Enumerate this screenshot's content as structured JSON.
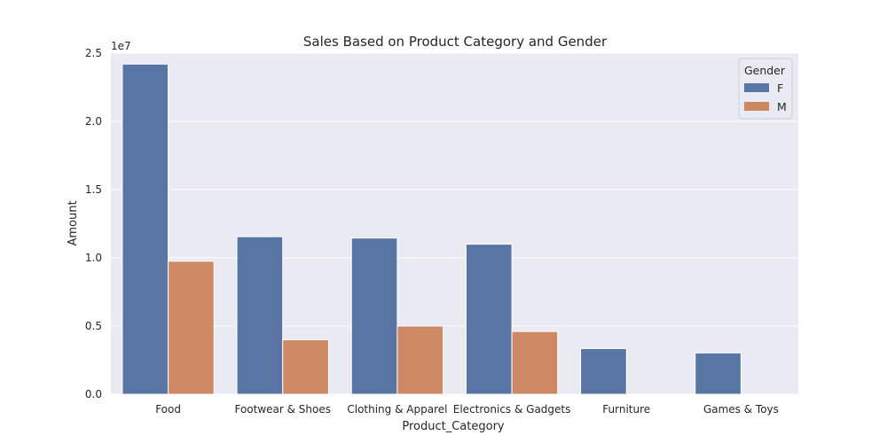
{
  "chart_data": {
    "type": "bar",
    "title": "Sales Based on Product Category and Gender",
    "xlabel": "Product_Category",
    "ylabel": "Amount",
    "y_offset_label": "1e7",
    "categories": [
      "Food",
      "Footwear & Shoes",
      "Clothing & Apparel",
      "Electronics & Gadgets",
      "Furniture",
      "Games & Toys"
    ],
    "series": [
      {
        "name": "F",
        "color": "#5875a4",
        "values": [
          24200000,
          11550000,
          11450000,
          11000000,
          3350000,
          3030000
        ]
      },
      {
        "name": "M",
        "color": "#cc8963",
        "values": [
          9750000,
          4000000,
          5000000,
          4600000,
          0,
          0
        ]
      }
    ],
    "ylim": [
      0,
      25000000
    ],
    "yticks": [
      0,
      5000000,
      10000000,
      15000000,
      20000000,
      25000000
    ],
    "ytick_labels": [
      "0.0",
      "0.5",
      "1.0",
      "1.5",
      "2.0",
      "2.5"
    ],
    "grid": true,
    "legend": {
      "title": "Gender",
      "placement": "top-right"
    },
    "colors": {
      "background": "#eaeaf2",
      "grid": "#ffffff"
    }
  }
}
